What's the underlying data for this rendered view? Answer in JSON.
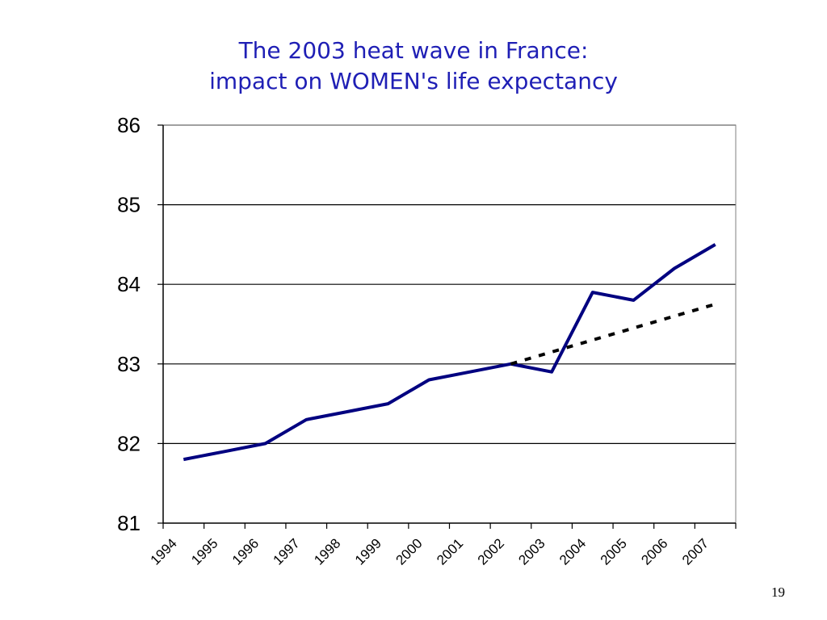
{
  "slide": {
    "page_number": "19"
  },
  "chart_data": {
    "type": "line",
    "title": [
      "The 2003 heat wave in France:",
      "impact on WOMEN's life expectancy"
    ],
    "xlabel": "",
    "ylabel": "",
    "categories": [
      "1994",
      "1995",
      "1996",
      "1997",
      "1998",
      "1999",
      "2000",
      "2001",
      "2002",
      "2003",
      "2004",
      "2005",
      "2006",
      "2007"
    ],
    "ylim": [
      81,
      86
    ],
    "yticks": [
      81,
      82,
      83,
      84,
      85,
      86
    ],
    "grid": {
      "horizontal": true,
      "vertical": false
    },
    "legend": "none",
    "series": [
      {
        "style": "solid",
        "color": "#000080",
        "values": [
          81.8,
          81.9,
          82.0,
          82.3,
          82.4,
          82.5,
          82.8,
          82.9,
          83.0,
          82.9,
          83.9,
          83.8,
          84.2,
          84.5
        ]
      },
      {
        "style": "dotted",
        "color": "#000000",
        "values": [
          null,
          null,
          null,
          null,
          null,
          null,
          null,
          null,
          83.0,
          83.15,
          83.3,
          83.45,
          83.6,
          83.75
        ]
      }
    ]
  }
}
